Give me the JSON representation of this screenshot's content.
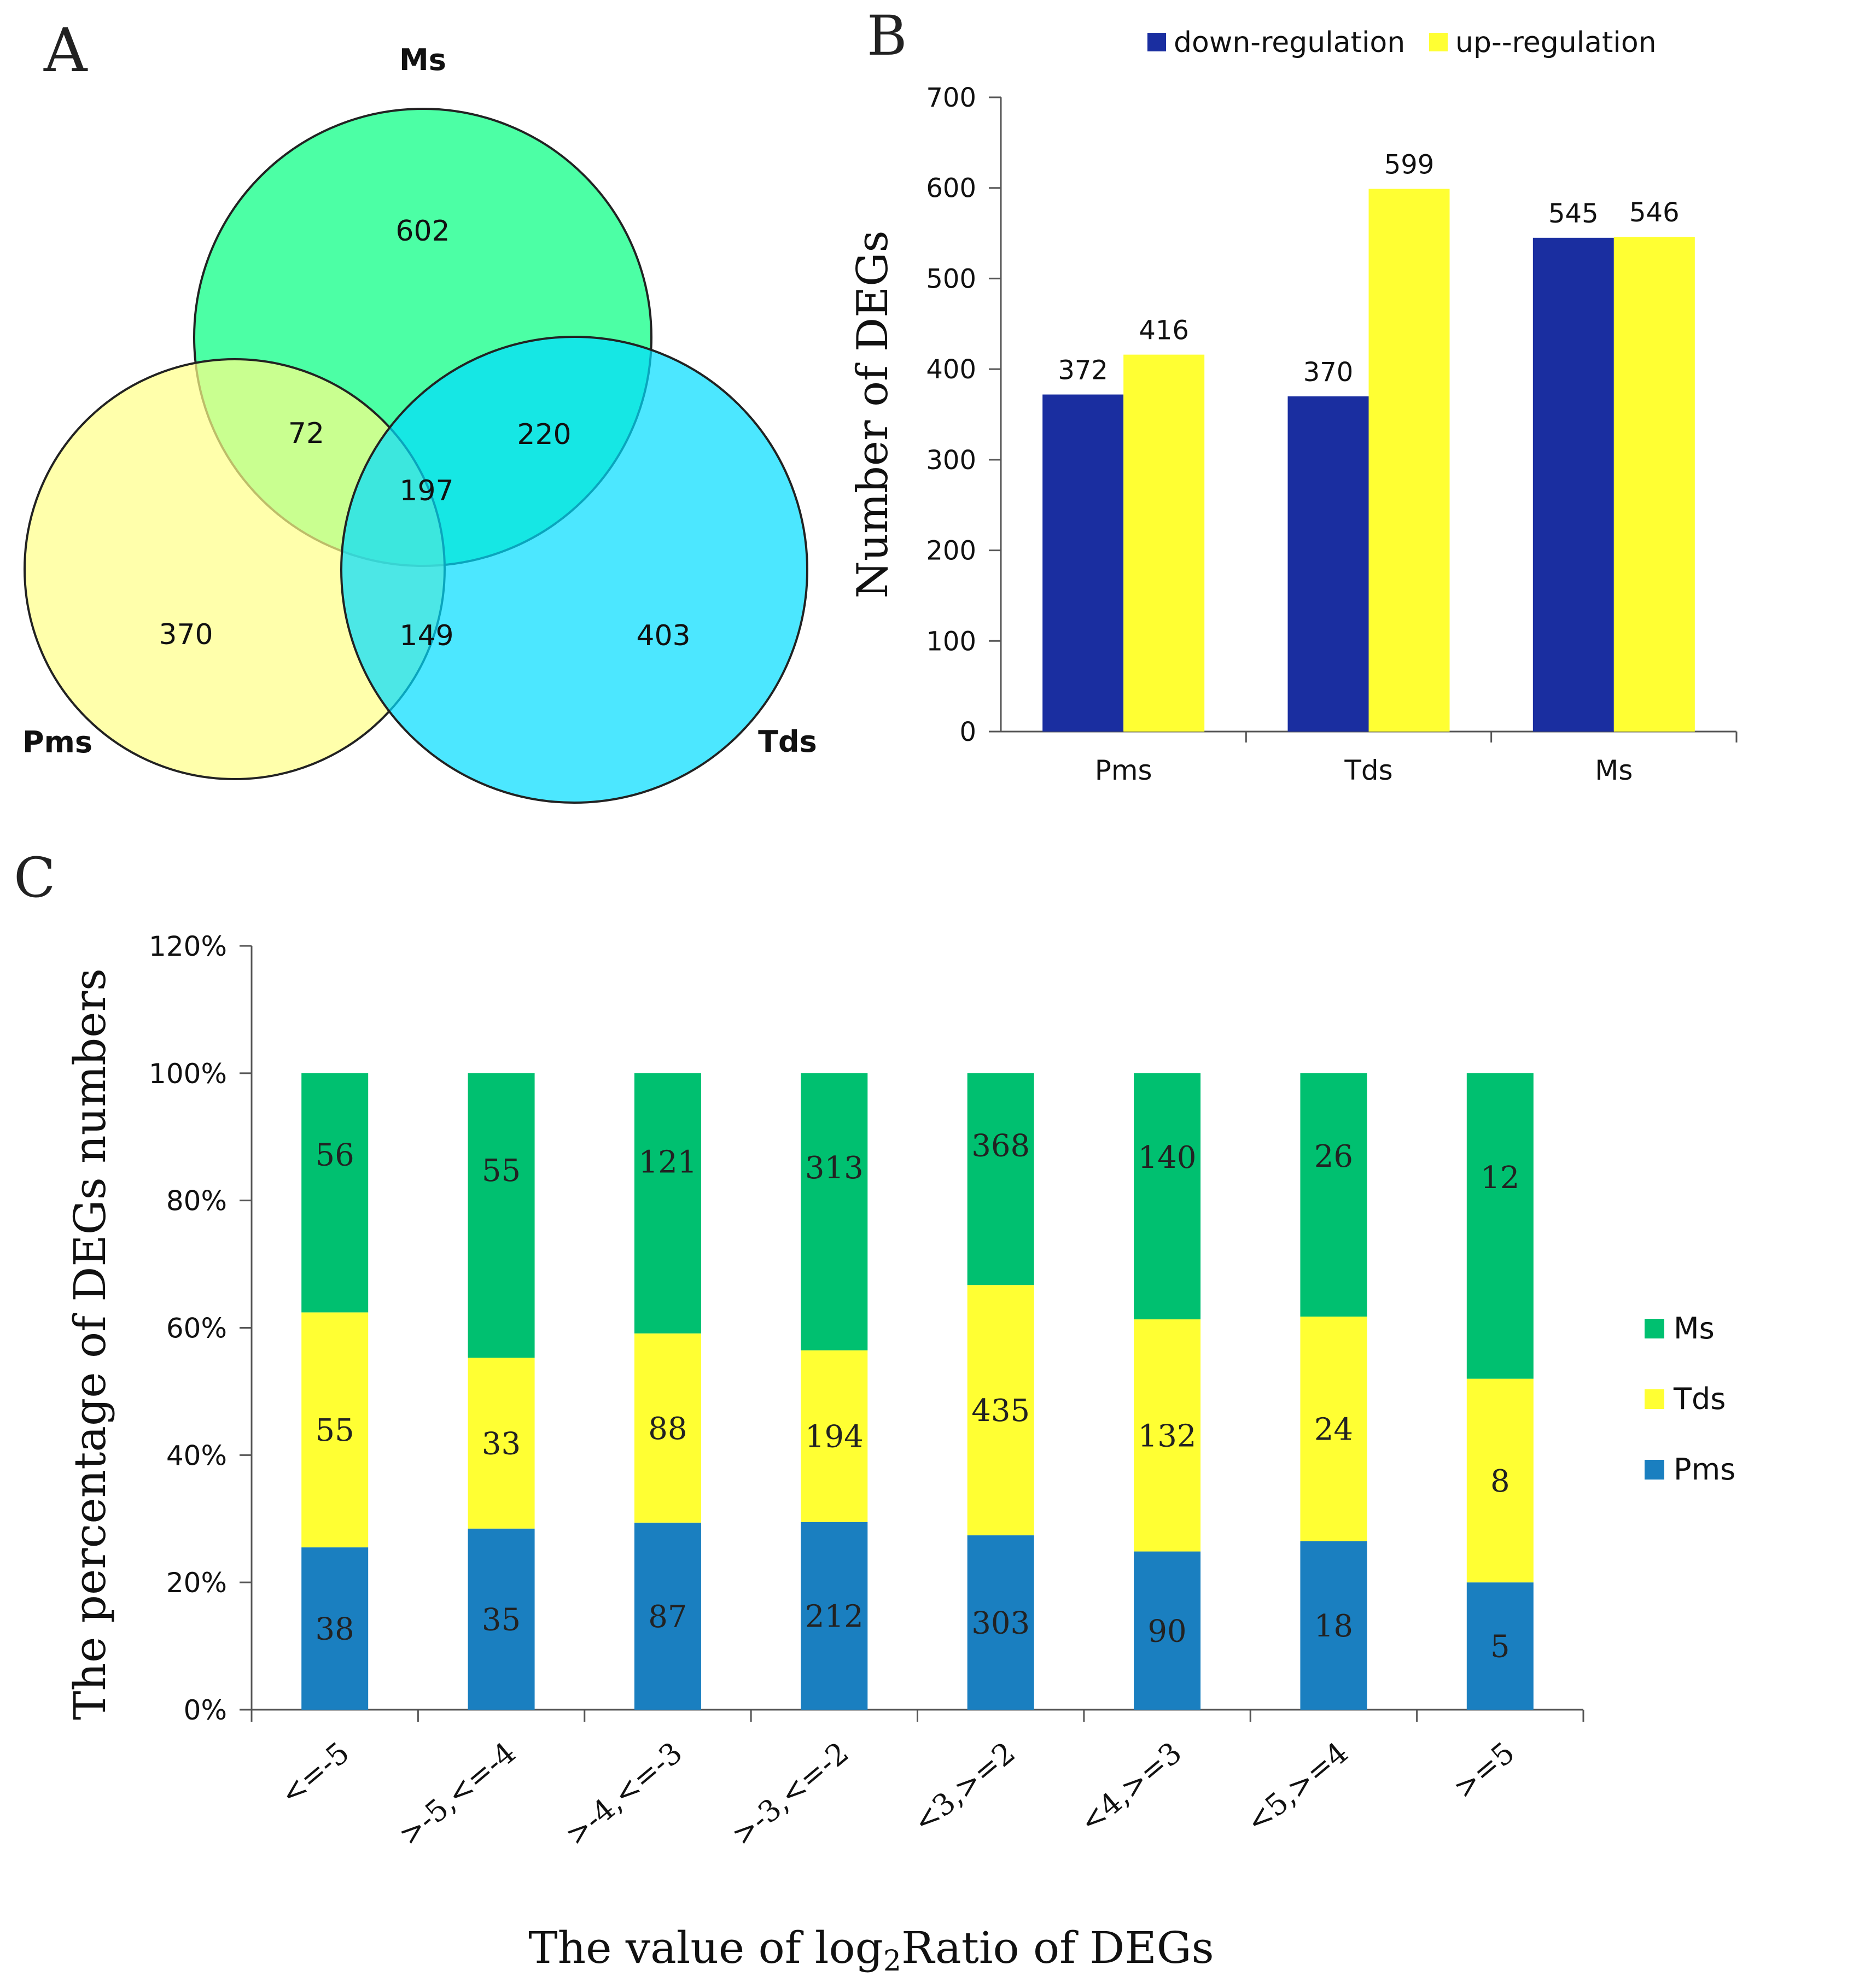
{
  "chart_data": [
    {
      "panel": "A",
      "type": "venn",
      "sets": [
        "Ms",
        "Pms",
        "Tds"
      ],
      "colors": {
        "Ms": "#00ff7f",
        "Pms": "#ffff88",
        "Tds": "#00ddff"
      },
      "regions": [
        {
          "sets": [
            "Ms"
          ],
          "value": "602"
        },
        {
          "sets": [
            "Pms"
          ],
          "value": "370"
        },
        {
          "sets": [
            "Tds"
          ],
          "value": "403"
        },
        {
          "sets": [
            "Ms",
            "Pms"
          ],
          "value": "72"
        },
        {
          "sets": [
            "Ms",
            "Tds"
          ],
          "value": "220"
        },
        {
          "sets": [
            "Pms",
            "Tds"
          ],
          "value": "149"
        },
        {
          "sets": [
            "Ms",
            "Pms",
            "Tds"
          ],
          "value": "197"
        }
      ]
    },
    {
      "panel": "B",
      "type": "bar",
      "categories": [
        "Pms",
        "Tds",
        "Ms"
      ],
      "series": [
        {
          "name": "down-regulation",
          "color": "#1a2ea0",
          "values": [
            372,
            370,
            545
          ]
        },
        {
          "name": "up--regulation",
          "color": "#ffff33",
          "values": [
            416,
            599,
            546
          ]
        }
      ],
      "ylabel": "Number of DEGs",
      "ylim": [
        0,
        700
      ],
      "yticks": [
        0,
        100,
        200,
        300,
        400,
        500,
        600,
        700
      ],
      "legend": "top"
    },
    {
      "panel": "C",
      "type": "bar",
      "stacked": "percent",
      "categories": [
        "<=-5",
        ">-5,<=-4",
        ">-4,<=-3",
        ">-3,<=-2",
        "<3,>=2",
        "<4,>=3",
        "<5,>=4",
        ">=5"
      ],
      "series": [
        {
          "name": "Pms",
          "color": "#1a7fc0",
          "values": [
            38,
            35,
            87,
            212,
            303,
            90,
            18,
            5
          ]
        },
        {
          "name": "Tds",
          "color": "#ffff33",
          "values": [
            55,
            33,
            88,
            194,
            435,
            132,
            24,
            8
          ]
        },
        {
          "name": "Ms",
          "color": "#00c070",
          "values": [
            56,
            55,
            121,
            313,
            368,
            140,
            26,
            12
          ]
        }
      ],
      "xlabel_parts": [
        "The value of log",
        "2",
        "Ratio of DEGs"
      ],
      "ylabel": "The percentage of DEGs numbers",
      "ylim": [
        0,
        120
      ],
      "yticks": [
        "0%",
        "20%",
        "40%",
        "60%",
        "80%",
        "100%",
        "120%"
      ],
      "legend": "right"
    }
  ],
  "panel_labels": {
    "a": "A",
    "b": "B",
    "c": "C"
  }
}
